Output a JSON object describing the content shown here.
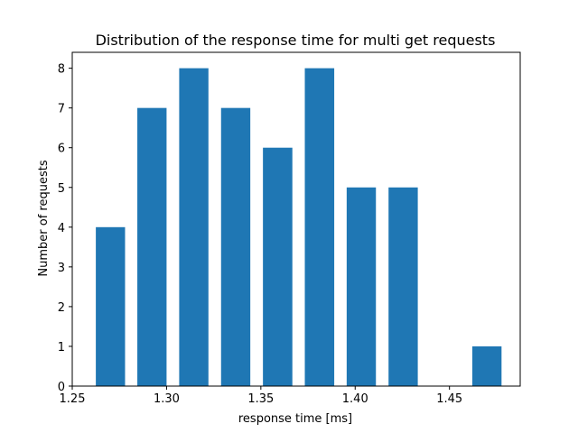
{
  "chart_data": {
    "type": "bar",
    "title": "Distribution of the response time for multi get requests",
    "xlabel": "response time [ms]",
    "ylabel": "Number of requests",
    "xlim": [
      1.25,
      1.4875
    ],
    "ylim": [
      0,
      8.4
    ],
    "bar_color": "#1f77b4",
    "bins": [
      {
        "start": 1.2625,
        "end": 1.278,
        "value": 4
      },
      {
        "start": 1.2845,
        "end": 1.3,
        "value": 7
      },
      {
        "start": 1.3067,
        "end": 1.3222,
        "value": 8
      },
      {
        "start": 1.3289,
        "end": 1.3444,
        "value": 7
      },
      {
        "start": 1.3511,
        "end": 1.3667,
        "value": 6
      },
      {
        "start": 1.3733,
        "end": 1.3889,
        "value": 8
      },
      {
        "start": 1.3955,
        "end": 1.411,
        "value": 5
      },
      {
        "start": 1.4177,
        "end": 1.4332,
        "value": 5
      },
      {
        "start": 1.4399,
        "end": 1.4554,
        "value": 0
      },
      {
        "start": 1.4621,
        "end": 1.4776,
        "value": 1
      }
    ],
    "x_ticks": [
      {
        "value": 1.25,
        "label": "1.25"
      },
      {
        "value": 1.3,
        "label": "1.30"
      },
      {
        "value": 1.35,
        "label": "1.35"
      },
      {
        "value": 1.4,
        "label": "1.40"
      },
      {
        "value": 1.45,
        "label": "1.45"
      }
    ],
    "y_ticks": [
      {
        "value": 0,
        "label": "0"
      },
      {
        "value": 1,
        "label": "1"
      },
      {
        "value": 2,
        "label": "2"
      },
      {
        "value": 3,
        "label": "3"
      },
      {
        "value": 4,
        "label": "4"
      },
      {
        "value": 5,
        "label": "5"
      },
      {
        "value": 6,
        "label": "6"
      },
      {
        "value": 7,
        "label": "7"
      },
      {
        "value": 8,
        "label": "8"
      }
    ],
    "grid": false
  }
}
